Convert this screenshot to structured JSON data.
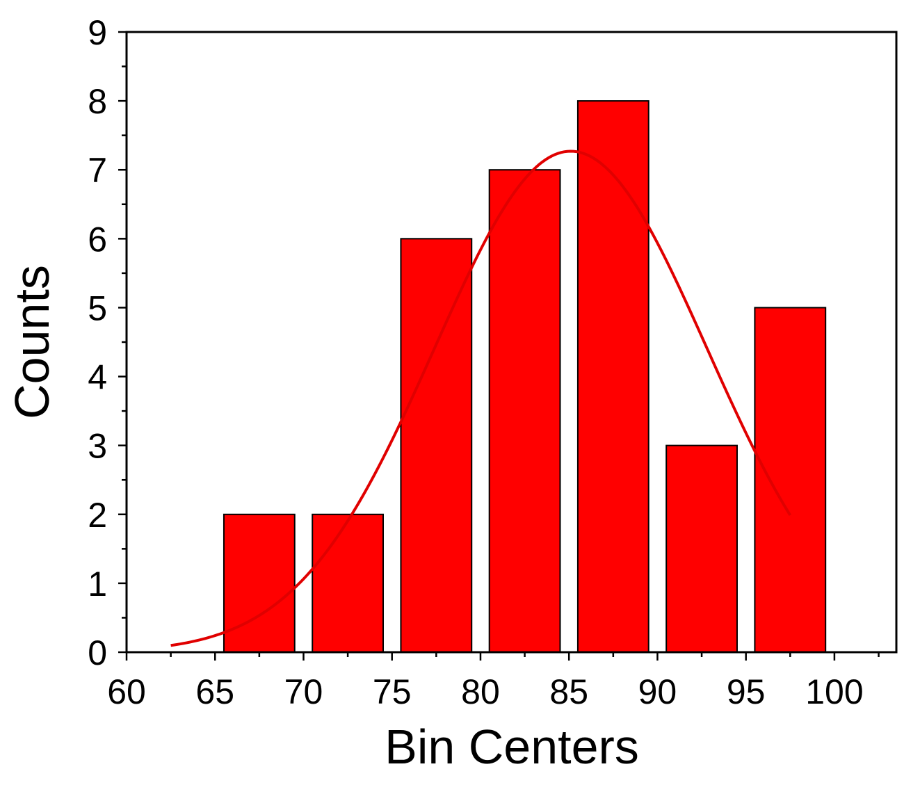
{
  "chart_data": {
    "type": "bar",
    "xlabel": "Bin Centers",
    "ylabel": "Counts",
    "xlim": [
      60,
      103.5
    ],
    "ylim": [
      0,
      9
    ],
    "x_ticks": [
      "60",
      "65",
      "70",
      "75",
      "80",
      "85",
      "90",
      "95",
      "100"
    ],
    "y_ticks": [
      "0",
      "1",
      "2",
      "3",
      "4",
      "5",
      "6",
      "7",
      "8",
      "9"
    ],
    "bin_width": 5,
    "bar_width_fraction": 0.8,
    "bins": [
      {
        "center": 67.5,
        "count": 2
      },
      {
        "center": 72.5,
        "count": 2
      },
      {
        "center": 77.5,
        "count": 6
      },
      {
        "center": 82.5,
        "count": 7
      },
      {
        "center": 87.5,
        "count": 8
      },
      {
        "center": 92.5,
        "count": 3
      },
      {
        "center": 97.5,
        "count": 5
      }
    ],
    "fit_curve": {
      "type": "normal",
      "peak": 7.27,
      "mean": 85.1,
      "sigma": 7.7,
      "x_range": [
        62.5,
        97.5
      ]
    },
    "bar_color": "#ff0000",
    "curve_color": "#e00000",
    "grid": false,
    "legend": false
  }
}
